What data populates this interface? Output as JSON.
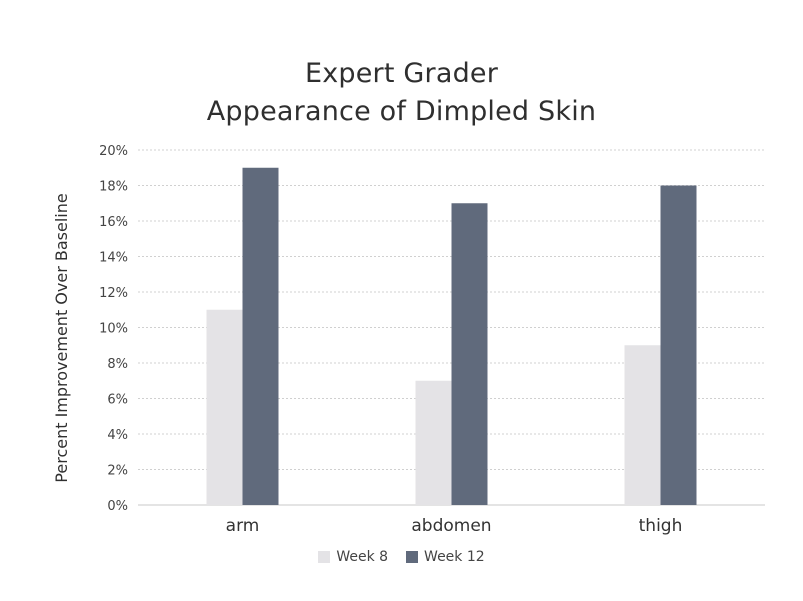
{
  "chart_data": {
    "type": "bar",
    "title": "Expert Grader",
    "subtitle": "Appearance of Dimpled Skin",
    "xlabel": "",
    "ylabel": "Percent Improvement Over Baseline",
    "categories": [
      "arm",
      "abdomen",
      "thigh"
    ],
    "series": [
      {
        "name": "Week 8",
        "values": [
          11,
          7,
          9
        ],
        "color": "#e4e3e6"
      },
      {
        "name": "Week 12",
        "values": [
          19,
          17,
          18
        ],
        "color": "#606a7c"
      }
    ],
    "ylim": [
      0,
      20
    ],
    "yticks": [
      "0%",
      "2%",
      "4%",
      "6%",
      "8%",
      "10%",
      "12%",
      "14%",
      "16%",
      "18%",
      "20%"
    ],
    "grid": true,
    "legend_position": "bottom"
  }
}
